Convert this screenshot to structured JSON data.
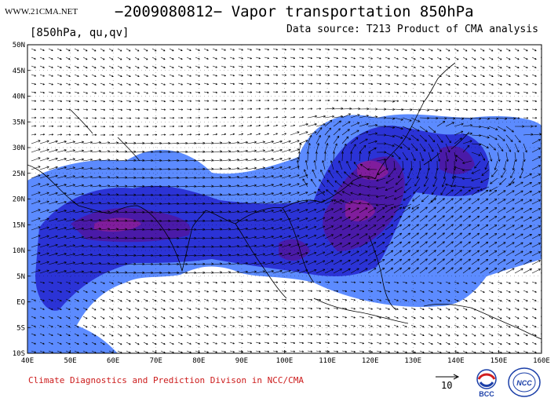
{
  "header": {
    "site": "WWW.21CMA.NET",
    "title": "−2009080812− Vapor transportation 850hPa",
    "level_label": "[850hPa, qu,qv]",
    "data_source": "Data source: T213 Product of CMA analysis"
  },
  "map": {
    "lat_labels": [
      "50N",
      "45N",
      "40N",
      "35N",
      "30N",
      "25N",
      "20N",
      "15N",
      "10N",
      "5N",
      "EQ",
      "5S",
      "10S"
    ],
    "lon_labels": [
      "40E",
      "50E",
      "60E",
      "70E",
      "80E",
      "90E",
      "100E",
      "110E",
      "120E",
      "130E",
      "140E",
      "150E",
      "160E"
    ],
    "lon_range": [
      40,
      160
    ],
    "lat_range": [
      -10,
      50
    ],
    "colors": {
      "fill_light": "#5c8bff",
      "fill_mid": "#2b33d6",
      "fill_dark": "#4a1aa8",
      "fill_core": "#8a1f9a",
      "vector": "#000000",
      "coast": "#000000"
    }
  },
  "footer": {
    "credit": "Climate Diagnostics and Prediction Divison in NCC/CMA",
    "reference_value": "10",
    "logo_left": "BCC",
    "logo_right": "NCC"
  }
}
